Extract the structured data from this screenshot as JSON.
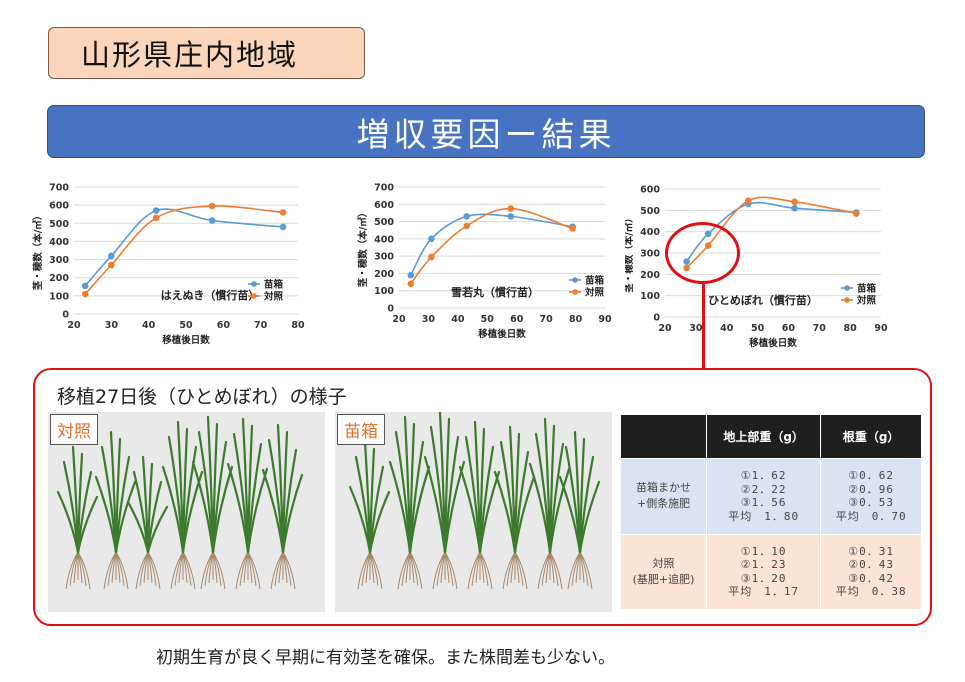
{
  "header": {
    "region": "山形県庄内地域",
    "title": "増収要因ー結果"
  },
  "charts": {
    "y_label": "茎・穂数（本/㎡）",
    "x_label": "移植後日数",
    "legend": [
      "苗箱",
      "対照"
    ]
  },
  "chart_data": [
    {
      "type": "line",
      "title": "はえぬき（慣行苗）",
      "xlabel": "移植後日数",
      "ylabel": "茎・穂数（本/㎡）",
      "xlim": [
        20,
        80
      ],
      "ylim": [
        0,
        700
      ],
      "xticks": [
        20,
        30,
        40,
        50,
        60,
        70,
        80
      ],
      "yticks": [
        0,
        100,
        200,
        300,
        400,
        500,
        600,
        700
      ],
      "series": [
        {
          "name": "苗箱",
          "color": "#5b9bd5",
          "x": [
            23,
            30,
            42,
            57,
            76
          ],
          "y": [
            155,
            320,
            570,
            515,
            480
          ]
        },
        {
          "name": "対照",
          "color": "#ed7d31",
          "x": [
            23,
            30,
            42,
            57,
            76
          ],
          "y": [
            110,
            270,
            530,
            595,
            560
          ]
        }
      ]
    },
    {
      "type": "line",
      "title": "雪若丸（慣行苗）",
      "xlabel": "移植後日数",
      "ylabel": "茎・穂数（本/㎡）",
      "xlim": [
        20,
        90
      ],
      "ylim": [
        0,
        700
      ],
      "xticks": [
        20,
        30,
        40,
        50,
        60,
        70,
        80,
        90
      ],
      "yticks": [
        0,
        100,
        200,
        300,
        400,
        500,
        600,
        700
      ],
      "series": [
        {
          "name": "苗箱",
          "color": "#5b9bd5",
          "x": [
            24,
            31,
            43,
            58,
            79
          ],
          "y": [
            190,
            400,
            530,
            530,
            470
          ]
        },
        {
          "name": "対照",
          "color": "#ed7d31",
          "x": [
            24,
            31,
            43,
            58,
            79
          ],
          "y": [
            140,
            295,
            475,
            575,
            460
          ]
        }
      ]
    },
    {
      "type": "line",
      "title": "ひとめぼれ（慣行苗）",
      "xlabel": "移植後日数",
      "ylabel": "茎・穂数（本/㎡）",
      "xlim": [
        20,
        90
      ],
      "ylim": [
        0,
        600
      ],
      "xticks": [
        20,
        30,
        40,
        50,
        60,
        70,
        80,
        90
      ],
      "yticks": [
        0,
        100,
        200,
        300,
        400,
        500,
        600
      ],
      "series": [
        {
          "name": "苗箱",
          "color": "#5b9bd5",
          "x": [
            27,
            34,
            47,
            62,
            82
          ],
          "y": [
            260,
            390,
            530,
            510,
            490
          ]
        },
        {
          "name": "対照",
          "color": "#ed7d31",
          "x": [
            27,
            34,
            47,
            62,
            82
          ],
          "y": [
            230,
            335,
            545,
            540,
            485
          ]
        }
      ]
    }
  ],
  "photos": {
    "title": "移植27日後（ひとめぼれ）の様子",
    "left_label": "対照",
    "right_label": "苗箱"
  },
  "table": {
    "headers": [
      "",
      "地上部重（g）",
      "根重（g）"
    ],
    "rows": [
      {
        "label_line1": "苗箱まかせ",
        "label_line2": "+側条施肥",
        "shoot": [
          "①1．62",
          "②2．22",
          "③1．56",
          "平均　1．80"
        ],
        "root": [
          "①0．62",
          "②0．96",
          "③0．53",
          "平均　0．70"
        ]
      },
      {
        "label_line1": "対照",
        "label_line2": "(基肥+追肥)",
        "shoot": [
          "①1．10",
          "②1．23",
          "③1．20",
          "平均　1．17"
        ],
        "root": [
          "①0．31",
          "②0．43",
          "③0．42",
          "平均　0．38"
        ]
      }
    ]
  },
  "footer": {
    "note": "初期生育が良く早期に有効茎を確保。また株間差も少ない。"
  }
}
